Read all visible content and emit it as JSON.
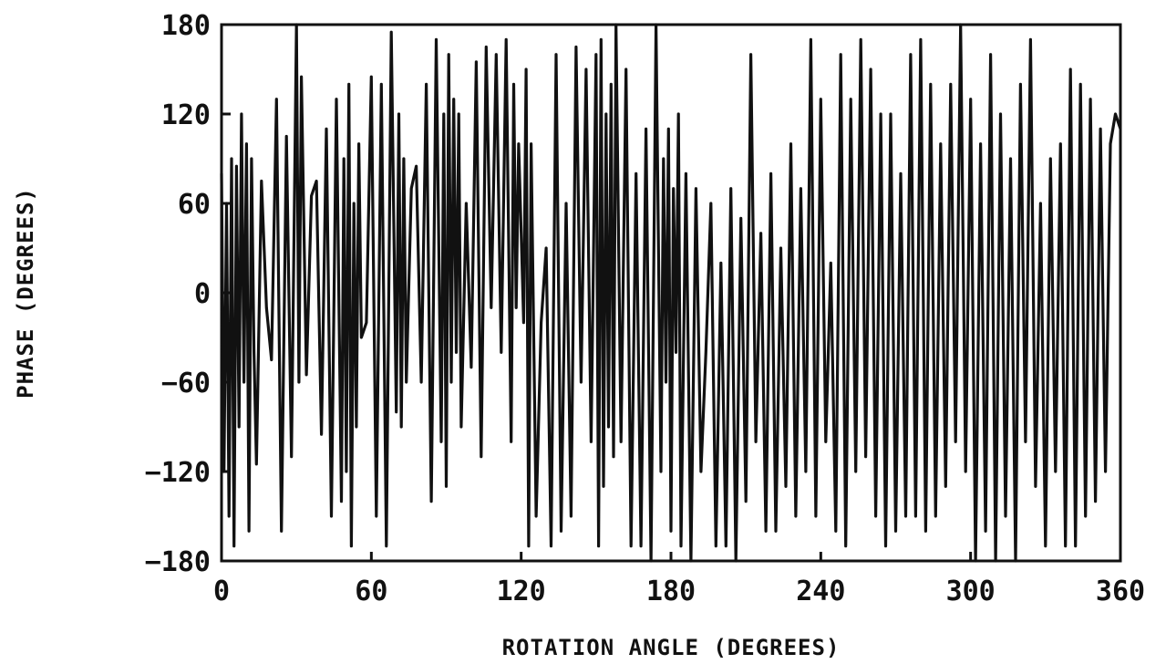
{
  "chart_data": {
    "type": "line",
    "title": "",
    "xlabel": "ROTATION ANGLE (DEGREES)",
    "ylabel": "PHASE (DEGREES)",
    "xlim": [
      0,
      360
    ],
    "ylim": [
      -180,
      180
    ],
    "x_ticks": [
      0,
      60,
      120,
      180,
      240,
      300,
      360
    ],
    "x_tick_labels": [
      "0",
      "60",
      "120",
      "180",
      "240",
      "300",
      "360"
    ],
    "y_ticks": [
      180,
      120,
      60,
      0,
      -60,
      -120,
      -180
    ],
    "y_tick_labels": [
      "180",
      "120",
      "60",
      "0",
      "−60",
      "−120",
      "−180"
    ],
    "grid": false,
    "legend": "none",
    "series": [
      {
        "color": "#111111",
        "x": [
          0,
          1,
          2,
          3,
          4,
          5,
          6,
          7,
          8,
          9,
          10,
          11,
          12,
          13,
          14,
          16,
          18,
          20,
          22,
          24,
          26,
          28,
          30,
          31,
          32,
          34,
          36,
          38,
          40,
          42,
          44,
          46,
          48,
          49,
          50,
          51,
          52,
          53,
          54,
          55,
          56,
          58,
          60,
          62,
          64,
          66,
          68,
          70,
          71,
          72,
          73,
          74,
          76,
          78,
          80,
          82,
          84,
          86,
          88,
          89,
          90,
          91,
          92,
          93,
          94,
          95,
          96,
          98,
          100,
          102,
          104,
          106,
          108,
          110,
          112,
          114,
          116,
          117,
          118,
          119,
          120,
          121,
          122,
          123,
          124,
          126,
          128,
          130,
          132,
          134,
          136,
          138,
          140,
          142,
          144,
          146,
          148,
          150,
          151,
          152,
          153,
          154,
          155,
          156,
          157,
          158,
          160,
          162,
          164,
          166,
          168,
          170,
          172,
          174,
          176,
          177,
          178,
          179,
          180,
          181,
          182,
          183,
          184,
          186,
          188,
          190,
          192,
          194,
          196,
          198,
          200,
          202,
          204,
          206,
          208,
          210,
          212,
          214,
          216,
          218,
          220,
          222,
          224,
          226,
          228,
          230,
          232,
          234,
          236,
          238,
          240,
          242,
          244,
          246,
          248,
          250,
          252,
          254,
          256,
          258,
          260,
          262,
          264,
          266,
          268,
          270,
          272,
          274,
          276,
          278,
          280,
          282,
          284,
          286,
          288,
          290,
          292,
          294,
          296,
          298,
          300,
          302,
          304,
          306,
          308,
          310,
          312,
          314,
          316,
          318,
          320,
          322,
          324,
          326,
          328,
          330,
          332,
          334,
          336,
          338,
          340,
          342,
          344,
          346,
          348,
          350,
          352,
          354,
          356,
          358,
          360
        ],
        "y": [
          80,
          -120,
          60,
          -150,
          90,
          -170,
          85,
          -90,
          120,
          -60,
          100,
          -160,
          90,
          -40,
          -115,
          75,
          -10,
          -45,
          130,
          -160,
          105,
          -110,
          180,
          -60,
          145,
          -55,
          65,
          75,
          -95,
          110,
          -150,
          130,
          -140,
          90,
          -120,
          140,
          -170,
          60,
          -90,
          100,
          -30,
          -20,
          145,
          -150,
          140,
          -170,
          175,
          -80,
          120,
          -90,
          90,
          -60,
          70,
          85,
          -60,
          140,
          -140,
          170,
          -100,
          120,
          -130,
          160,
          -60,
          130,
          -40,
          120,
          -90,
          60,
          -50,
          155,
          -110,
          165,
          -10,
          160,
          -40,
          170,
          -100,
          140,
          -10,
          100,
          40,
          -20,
          150,
          -170,
          100,
          -150,
          -20,
          30,
          -170,
          160,
          -160,
          60,
          -150,
          165,
          -60,
          150,
          -100,
          160,
          -170,
          170,
          -130,
          120,
          -90,
          140,
          -110,
          180,
          -100,
          150,
          -170,
          80,
          -170,
          110,
          -180,
          180,
          -120,
          90,
          -60,
          110,
          -160,
          70,
          -40,
          120,
          -170,
          80,
          -180,
          70,
          -120,
          -40,
          60,
          -170,
          20,
          -170,
          70,
          -180,
          50,
          -140,
          160,
          -100,
          40,
          -160,
          80,
          -160,
          30,
          -130,
          100,
          -150,
          70,
          -120,
          170,
          -150,
          130,
          -100,
          20,
          -160,
          160,
          -170,
          130,
          -120,
          170,
          -110,
          150,
          -150,
          120,
          -170,
          120,
          -160,
          80,
          -150,
          160,
          -150,
          170,
          -160,
          140,
          -150,
          100,
          -130,
          140,
          -100,
          180,
          -120,
          130,
          -180,
          100,
          -160,
          160,
          -180,
          120,
          -150,
          90,
          -180,
          140,
          -100,
          170,
          -130,
          60,
          -170,
          90,
          -120,
          100,
          -170,
          150,
          -170,
          140,
          -150,
          130,
          -140,
          110,
          -120,
          100,
          120,
          110
        ]
      }
    ]
  }
}
